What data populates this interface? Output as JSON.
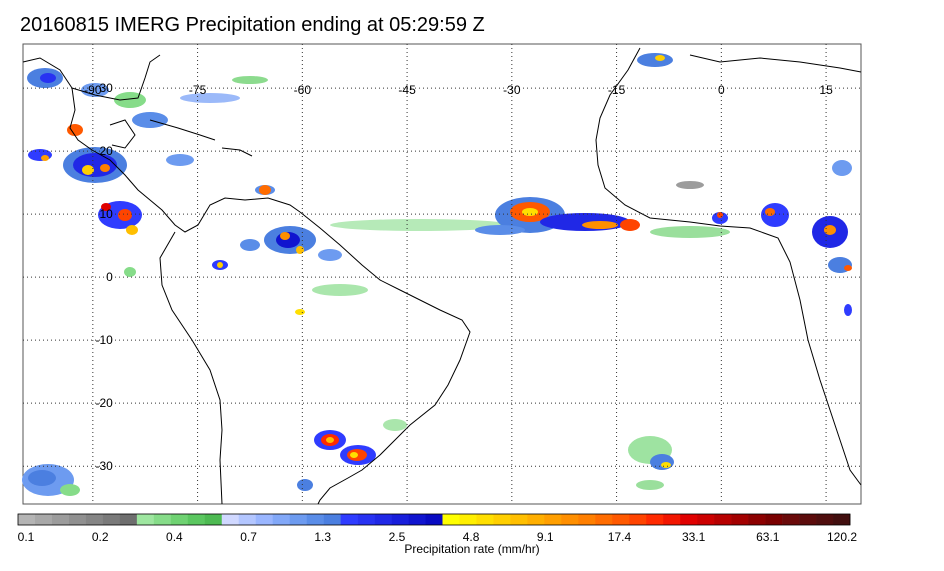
{
  "title": "20160815 IMERG Precipitation ending at 05:29:59 Z",
  "map": {
    "lon_labels": [
      "-90",
      "-75",
      "-60",
      "-45",
      "-30",
      "-15",
      "0",
      "15"
    ],
    "lat_labels": [
      "30",
      "20",
      "10",
      "0",
      "-10",
      "-20",
      "-30"
    ],
    "lon_values": [
      -90,
      -75,
      -60,
      -45,
      -30,
      -15,
      0,
      15
    ],
    "lat_values": [
      30,
      20,
      10,
      0,
      -10,
      -20,
      -30
    ],
    "lon_range": [
      -100,
      20
    ],
    "lat_range": [
      37,
      -36
    ],
    "grid": "dotted"
  },
  "colorbar": {
    "title": "Precipitation rate (mm/hr)",
    "tick_labels": [
      "0.1",
      "0.2",
      "0.4",
      "0.7",
      "1.3",
      "2.5",
      "4.8",
      "9.1",
      "17.4",
      "33.1",
      "63.1",
      "120.2"
    ],
    "colors": [
      "#b4b4b4",
      "#a8a8a8",
      "#9c9c9c",
      "#909090",
      "#858585",
      "#7a7a7a",
      "#6e6e6e",
      "#9ee6a0",
      "#86dc89",
      "#6fd272",
      "#5bc760",
      "#4dba52",
      "#d0d8ff",
      "#b3c6ff",
      "#9ab6ff",
      "#82a8f8",
      "#6d9bf0",
      "#5a8de8",
      "#4b7fe0",
      "#2f3cff",
      "#2832f2",
      "#2028e6",
      "#181edb",
      "#1014cf",
      "#080ac2",
      "#ffff00",
      "#ffef00",
      "#ffdf00",
      "#ffcf00",
      "#ffbf00",
      "#ffaf00",
      "#ff9f00",
      "#ff8f00",
      "#ff7f00",
      "#ff6c00",
      "#ff5900",
      "#ff4400",
      "#ff2a00",
      "#f21600",
      "#e00000",
      "#cc0000",
      "#b70000",
      "#a30000",
      "#8c0000",
      "#7a0000",
      "#6a0a0a",
      "#5c0c0c",
      "#4f0e0e",
      "#420f0f"
    ]
  },
  "colors": {
    "land_outline": "#000000",
    "grid": "#333333",
    "frame": "#555555"
  }
}
